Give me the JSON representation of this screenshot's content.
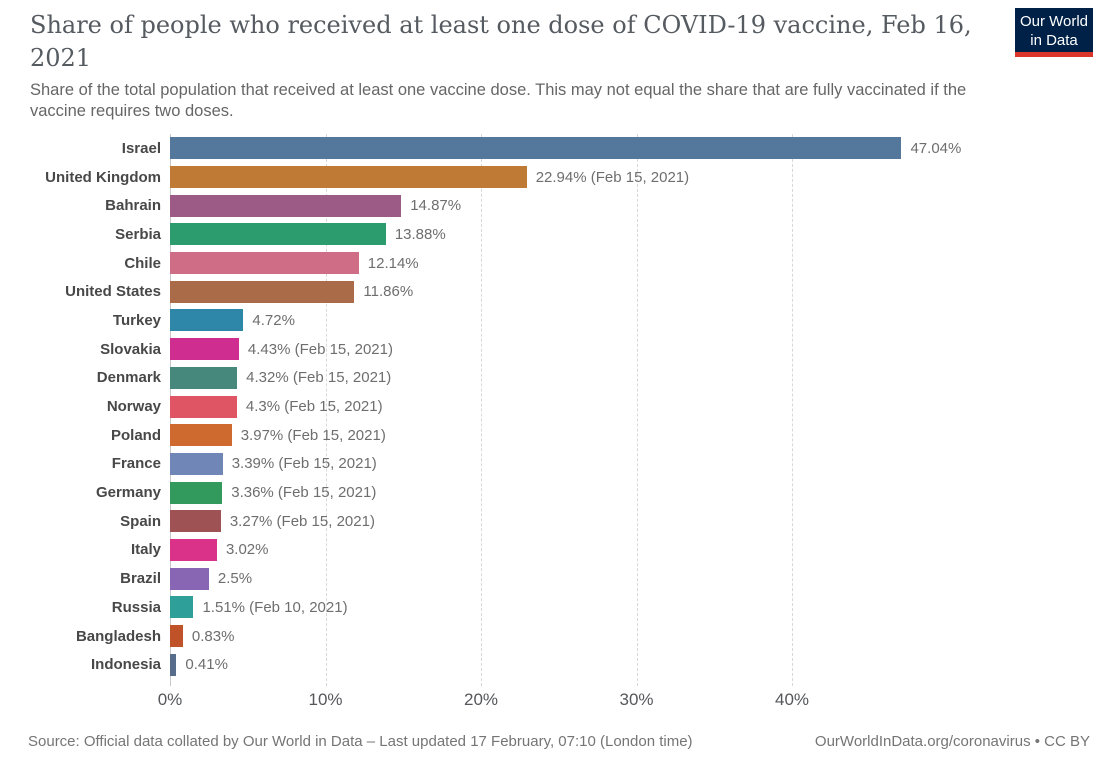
{
  "header": {
    "title": "Share of people who received at least one dose of COVID-19 vaccine, Feb 16, 2021",
    "subtitle": "Share of the total population that received at least one vaccine dose. This may not equal the share that are fully vaccinated if the vaccine requires two doses.",
    "logo": {
      "line1": "Our World",
      "line2": "in Data",
      "bg_color": "#002147",
      "accent_color": "#dc352c"
    }
  },
  "chart_data": {
    "type": "bar",
    "orientation": "horizontal",
    "title": "Share of people who received at least one dose of COVID-19 vaccine, Feb 16, 2021",
    "xlabel": "",
    "ylabel": "",
    "xlim": [
      0,
      58.5
    ],
    "grid": "vertical-dashed",
    "legend": "none",
    "categories": [
      "Israel",
      "United Kingdom",
      "Bahrain",
      "Serbia",
      "Chile",
      "United States",
      "Turkey",
      "Slovakia",
      "Denmark",
      "Norway",
      "Poland",
      "France",
      "Germany",
      "Spain",
      "Italy",
      "Brazil",
      "Russia",
      "Bangladesh",
      "Indonesia"
    ],
    "values": [
      47.04,
      22.94,
      14.87,
      13.88,
      12.14,
      11.86,
      4.72,
      4.43,
      4.32,
      4.3,
      3.97,
      3.39,
      3.36,
      3.27,
      3.02,
      2.5,
      1.51,
      0.83,
      0.41
    ],
    "value_labels": [
      "47.04%",
      "22.94% (Feb 15, 2021)",
      "14.87%",
      "13.88%",
      "12.14%",
      "11.86%",
      "4.72%",
      "4.43% (Feb 15, 2021)",
      "4.32% (Feb 15, 2021)",
      "4.3% (Feb 15, 2021)",
      "3.97% (Feb 15, 2021)",
      "3.39% (Feb 15, 2021)",
      "3.36% (Feb 15, 2021)",
      "3.27% (Feb 15, 2021)",
      "3.02%",
      "2.5%",
      "1.51% (Feb 10, 2021)",
      "0.83%",
      "0.41%"
    ],
    "bar_colors": [
      "#54789B",
      "#BF7B35",
      "#9C5B87",
      "#2C9C6F",
      "#CE6D85",
      "#A96B48",
      "#2E87A8",
      "#CF2D90",
      "#47887D",
      "#E05564",
      "#CE6A30",
      "#7086B6",
      "#319A5C",
      "#9E5253",
      "#D93288",
      "#8966B3",
      "#2EA099",
      "#BF5228",
      "#586D8B"
    ],
    "x_ticks": [
      "0%",
      "10%",
      "20%",
      "30%",
      "40%"
    ],
    "x_tick_values": [
      0,
      10,
      20,
      30,
      40
    ]
  },
  "footer": {
    "source": "Source: Official data collated by Our World in Data – Last updated 17 February, 07:10 (London time)",
    "attribution": "OurWorldInData.org/coronavirus • CC BY"
  }
}
